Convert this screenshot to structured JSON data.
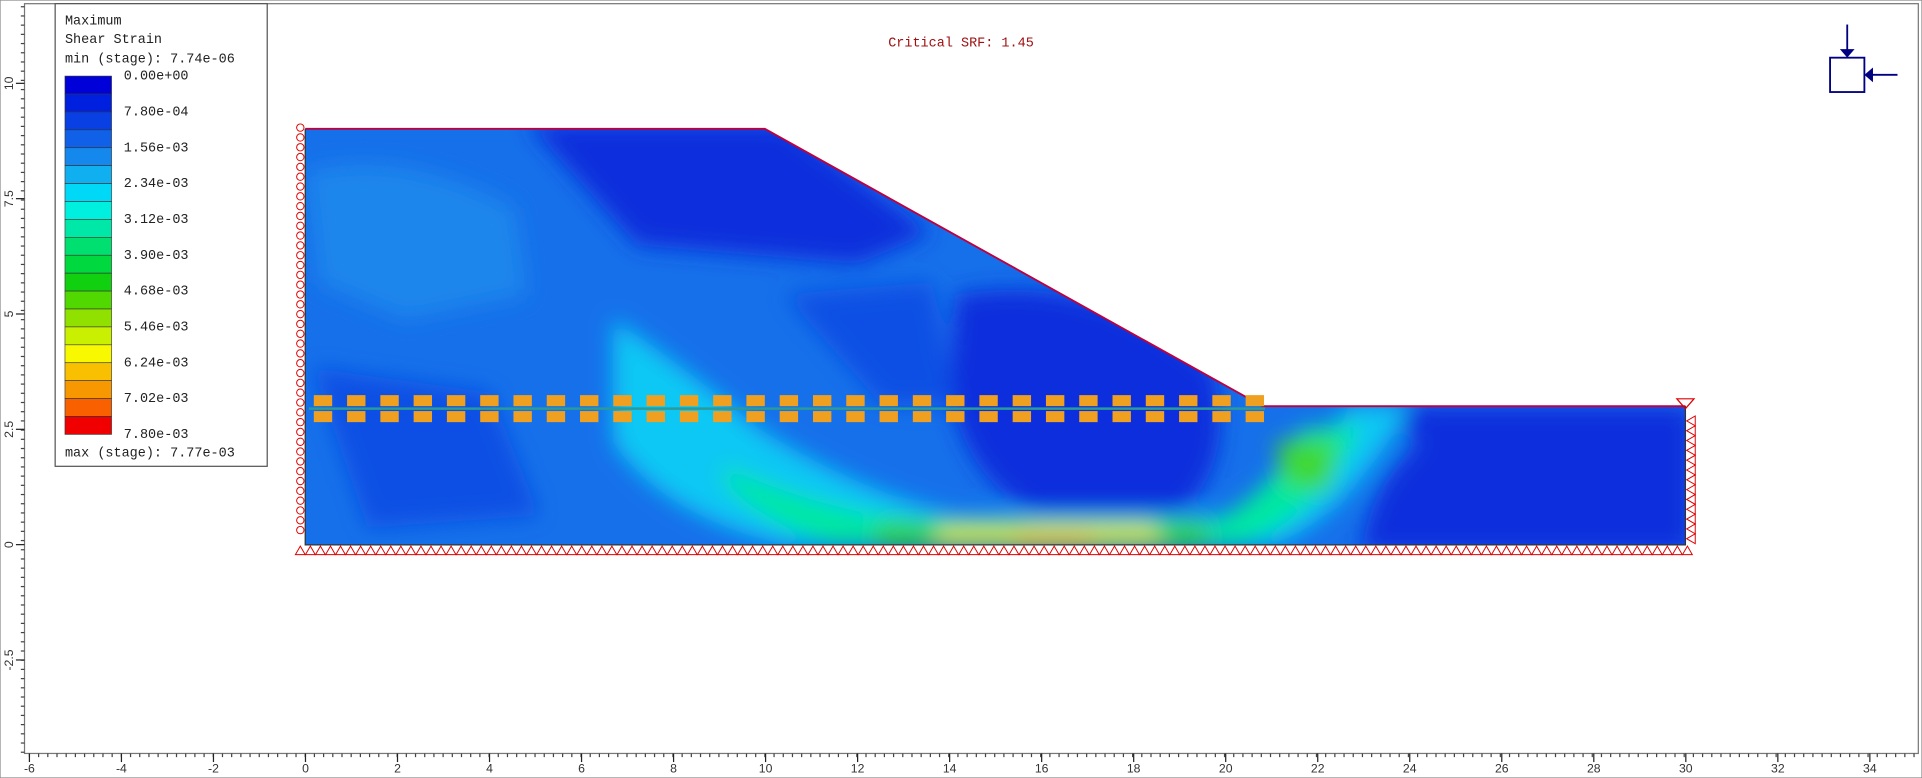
{
  "legend": {
    "title_lines": [
      "Maximum",
      "Shear Strain"
    ],
    "min_label": "min (stage): 7.74e-06",
    "labels": [
      "0.00e+00",
      "7.80e-04",
      "1.56e-03",
      "2.34e-03",
      "3.12e-03",
      "3.90e-03",
      "4.68e-03",
      "5.46e-03",
      "6.24e-03",
      "7.02e-03",
      "7.80e-03"
    ],
    "colors": [
      "#0000d8",
      "#0020e0",
      "#0840e4",
      "#1060e8",
      "#1488ec",
      "#10b0f0",
      "#00d8f8",
      "#00f0e0",
      "#00e8a8",
      "#00e070",
      "#00d840",
      "#10d010",
      "#50d800",
      "#90e000",
      "#c8f000",
      "#f8f800",
      "#f8c000",
      "#f89800",
      "#f86000",
      "#f00000"
    ],
    "max_label": "max (stage): 7.77e-03"
  },
  "annotation": "Critical SRF: 1.45",
  "axes": {
    "xlim": [
      -6,
      35
    ],
    "ylim": [
      -4.5,
      11.7
    ],
    "xticks": [
      -6,
      -4,
      -2,
      0,
      2,
      4,
      6,
      8,
      10,
      12,
      14,
      16,
      18,
      20,
      22,
      24,
      26,
      28,
      30,
      32,
      34
    ],
    "yticks": [
      -2.5,
      0,
      2.5,
      5,
      7.5,
      10
    ]
  }
}
